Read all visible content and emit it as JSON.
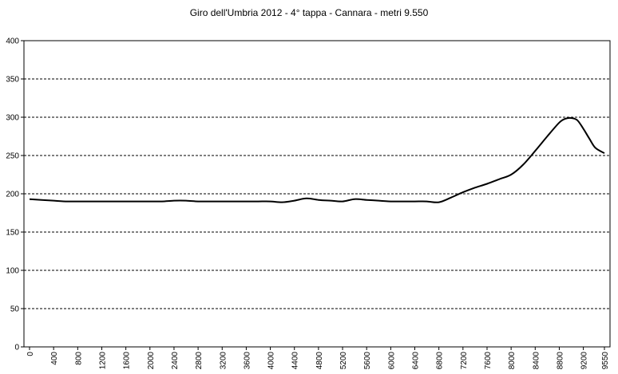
{
  "chart_data": {
    "type": "line",
    "title": "Giro dell'Umbria 2012 - 4° tappa - Cannara - metri 9.550",
    "xlabel": "",
    "ylabel": "",
    "ylim": [
      0,
      400
    ],
    "xlim": [
      0,
      9550
    ],
    "y_ticks": [
      0,
      50,
      100,
      150,
      200,
      250,
      300,
      350,
      400
    ],
    "x_ticks": [
      0,
      400,
      800,
      1200,
      1600,
      2000,
      2400,
      2800,
      3200,
      3600,
      4000,
      4400,
      4800,
      5200,
      5600,
      6000,
      6400,
      6800,
      7200,
      7600,
      8000,
      8400,
      8800,
      9200,
      9550
    ],
    "grid": "horizontal dashed",
    "series": [
      {
        "x": [
          0,
          200,
          400,
          600,
          800,
          1000,
          1200,
          1400,
          1600,
          1800,
          2000,
          2200,
          2400,
          2600,
          2800,
          3000,
          3200,
          3400,
          3600,
          3800,
          4000,
          4200,
          4400,
          4600,
          4800,
          5000,
          5200,
          5400,
          5600,
          5800,
          6000,
          6200,
          6400,
          6600,
          6800,
          7000,
          7200,
          7400,
          7600,
          7800,
          8000,
          8200,
          8400,
          8600,
          8800,
          8900,
          9000,
          9100,
          9200,
          9300,
          9400,
          9550
        ],
        "values": [
          193,
          192,
          191,
          190,
          190,
          190,
          190,
          190,
          190,
          190,
          190,
          190,
          191,
          191,
          190,
          190,
          190,
          190,
          190,
          190,
          190,
          189,
          191,
          194,
          192,
          191,
          190,
          193,
          192,
          191,
          190,
          190,
          190,
          190,
          189,
          195,
          202,
          208,
          213,
          219,
          225,
          238,
          256,
          275,
          293,
          298,
          299,
          296,
          285,
          272,
          260,
          253
        ]
      }
    ]
  }
}
